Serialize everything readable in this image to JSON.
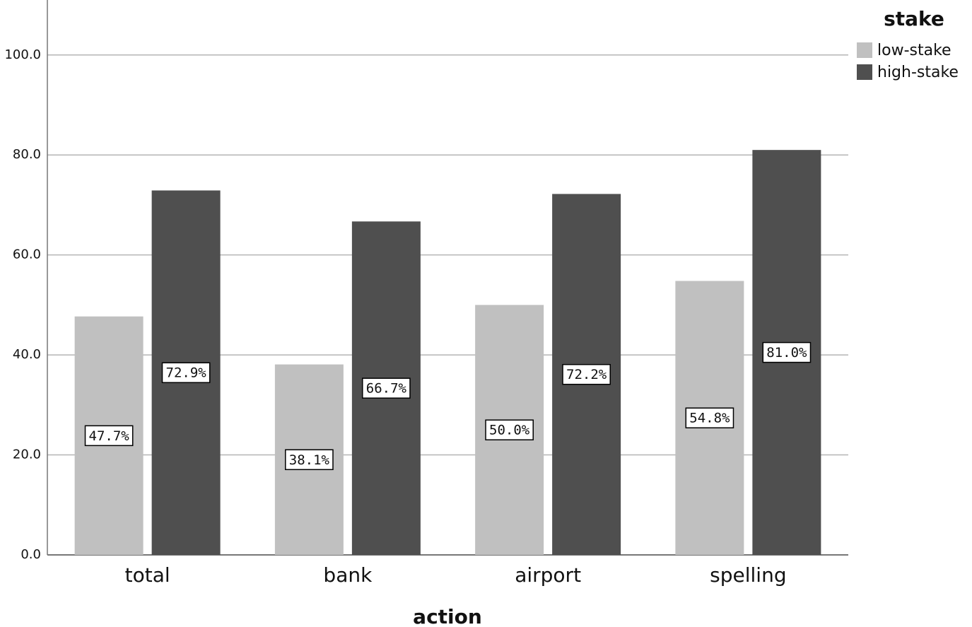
{
  "chart_data": {
    "type": "bar",
    "x_label": "action",
    "categories": [
      "total",
      "bank",
      "airport",
      "spelling"
    ],
    "series": [
      {
        "name": "low-stake",
        "color": "#c0c0c0",
        "values": [
          47.7,
          38.1,
          50.0,
          54.8
        ],
        "value_labels": [
          "47.7%",
          "38.1%",
          "50.0%",
          "54.8%"
        ]
      },
      {
        "name": "high-stake",
        "color": "#4f4f4f",
        "values": [
          72.9,
          66.7,
          72.2,
          81.0
        ],
        "value_labels": [
          "72.9%",
          "66.7%",
          "72.2%",
          "81.0%"
        ]
      }
    ],
    "legend_title": "stake",
    "legend": "top-right",
    "ylim": [
      0,
      111
    ],
    "yticks": [
      {
        "value": 0,
        "label": "0.0"
      },
      {
        "value": 20,
        "label": "20.0"
      },
      {
        "value": 40,
        "label": "40.0"
      },
      {
        "value": 60,
        "label": "60.0"
      },
      {
        "value": 80,
        "label": "80.0"
      },
      {
        "value": 100,
        "label": "100.0"
      }
    ],
    "grid": true
  }
}
